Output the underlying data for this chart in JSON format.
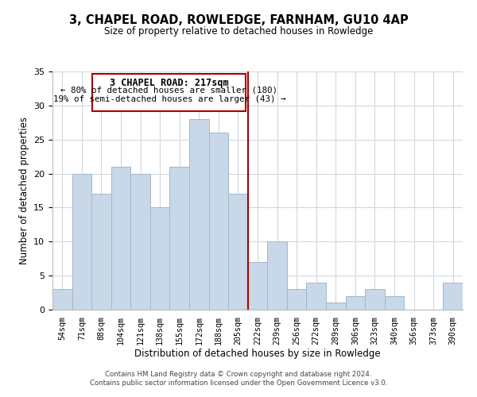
{
  "title": "3, CHAPEL ROAD, ROWLEDGE, FARNHAM, GU10 4AP",
  "subtitle": "Size of property relative to detached houses in Rowledge",
  "xlabel": "Distribution of detached houses by size in Rowledge",
  "ylabel": "Number of detached properties",
  "bar_labels": [
    "54sqm",
    "71sqm",
    "88sqm",
    "104sqm",
    "121sqm",
    "138sqm",
    "155sqm",
    "172sqm",
    "188sqm",
    "205sqm",
    "222sqm",
    "239sqm",
    "256sqm",
    "272sqm",
    "289sqm",
    "306sqm",
    "323sqm",
    "340sqm",
    "356sqm",
    "373sqm",
    "390sqm"
  ],
  "bar_values": [
    3,
    20,
    17,
    21,
    20,
    15,
    21,
    28,
    26,
    17,
    7,
    10,
    3,
    4,
    1,
    2,
    3,
    2,
    0,
    0,
    4
  ],
  "bar_color": "#c8d8e8",
  "bar_edgecolor": "#a0b8cc",
  "vline_color": "#aa0000",
  "annotation_title": "3 CHAPEL ROAD: 217sqm",
  "annotation_line1": "← 80% of detached houses are smaller (180)",
  "annotation_line2": "19% of semi-detached houses are larger (43) →",
  "annotation_box_edgecolor": "#aa0000",
  "ylim": [
    0,
    35
  ],
  "yticks": [
    0,
    5,
    10,
    15,
    20,
    25,
    30,
    35
  ],
  "footer_line1": "Contains HM Land Registry data © Crown copyright and database right 2024.",
  "footer_line2": "Contains public sector information licensed under the Open Government Licence v3.0.",
  "background_color": "#ffffff",
  "grid_color": "#d0d8e0"
}
